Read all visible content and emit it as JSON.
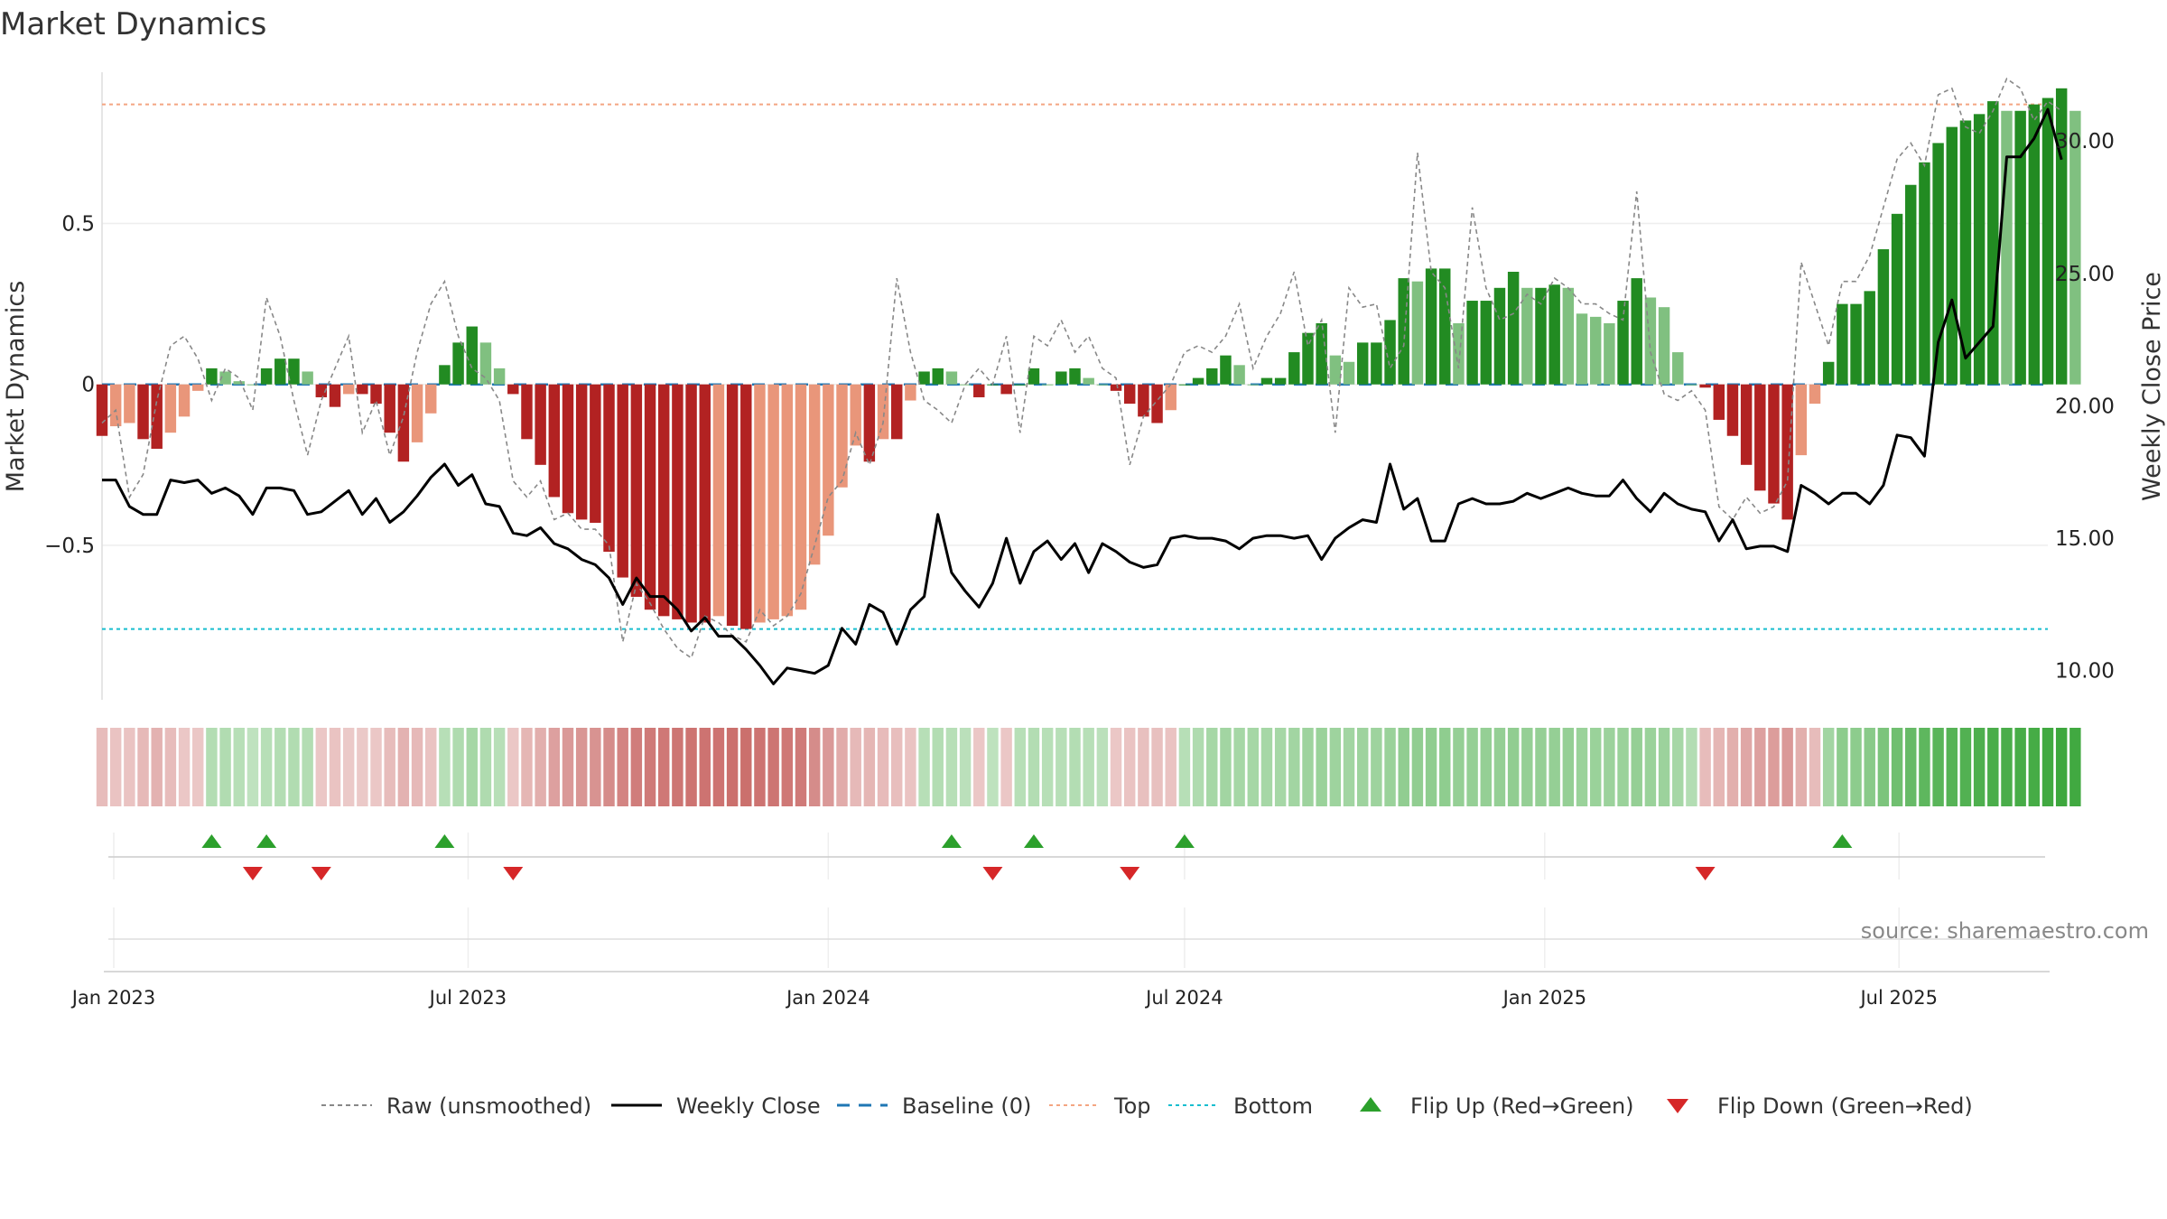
{
  "chart_data": {
    "type": "bar",
    "title": "Market Dynamics",
    "ylabel_left": "Market Dynamics",
    "ylabel_right": "Weekly Close Price",
    "left_ylim": [
      -0.98,
      0.97
    ],
    "right_ylim": [
      8.9,
      32.6
    ],
    "left_ticks": [
      0.5,
      0,
      -0.5
    ],
    "left_tick_labels": [
      "0.5",
      "0",
      "−0.5"
    ],
    "right_ticks": [
      30,
      25,
      20,
      15,
      10
    ],
    "right_tick_labels": [
      "30.00",
      "25.00",
      "20.00",
      "15.00",
      "10.00"
    ],
    "x_start": "2022-12-26",
    "x_end": "2025-09-15",
    "date_ticks": [
      {
        "date": "2023-01-01",
        "label": "Jan 2023"
      },
      {
        "date": "2023-07-01",
        "label": "Jul 2023"
      },
      {
        "date": "2024-01-01",
        "label": "Jan 2024"
      },
      {
        "date": "2024-07-01",
        "label": "Jul 2024"
      },
      {
        "date": "2025-01-01",
        "label": "Jan 2025"
      },
      {
        "date": "2025-07-01",
        "label": "Jul 2025"
      }
    ],
    "first_week": "2022-12-26",
    "top_line": 0.87,
    "bottom_line": -0.76,
    "baseline": 0,
    "smoothed": [
      -0.16,
      -0.13,
      -0.12,
      -0.17,
      -0.2,
      -0.15,
      -0.1,
      -0.02,
      0.05,
      0.04,
      0.01,
      0.0,
      0.05,
      0.08,
      0.08,
      0.04,
      -0.04,
      -0.07,
      -0.03,
      -0.03,
      -0.06,
      -0.15,
      -0.24,
      -0.18,
      -0.09,
      0.06,
      0.13,
      0.18,
      0.13,
      0.05,
      -0.03,
      -0.17,
      -0.25,
      -0.35,
      -0.4,
      -0.42,
      -0.43,
      -0.52,
      -0.6,
      -0.66,
      -0.7,
      -0.72,
      -0.73,
      -0.74,
      -0.74,
      -0.72,
      -0.75,
      -0.76,
      -0.74,
      -0.73,
      -0.72,
      -0.7,
      -0.56,
      -0.47,
      -0.32,
      -0.19,
      -0.24,
      -0.17,
      -0.17,
      -0.05,
      0.04,
      0.05,
      0.04,
      0.0,
      -0.04,
      0.0,
      -0.03,
      0.0,
      0.05,
      0.0,
      0.04,
      0.05,
      0.02,
      0.0,
      -0.02,
      -0.06,
      -0.1,
      -0.12,
      -0.08,
      0.0,
      0.02,
      0.05,
      0.09,
      0.06,
      0.0,
      0.02,
      0.02,
      0.1,
      0.16,
      0.19,
      0.09,
      0.07,
      0.13,
      0.13,
      0.2,
      0.33,
      0.32,
      0.36,
      0.36,
      0.19,
      0.26,
      0.26,
      0.3,
      0.35,
      0.3,
      0.3,
      0.31,
      0.3,
      0.22,
      0.21,
      0.19,
      0.26,
      0.33,
      0.27,
      0.24,
      0.1,
      0.0,
      -0.01,
      -0.11,
      -0.16,
      -0.25,
      -0.33,
      -0.37,
      -0.42,
      -0.22,
      -0.06,
      0.07,
      0.25,
      0.25,
      0.29,
      0.42,
      0.53,
      0.62,
      0.69,
      0.75,
      0.8,
      0.82,
      0.84,
      0.88,
      0.85,
      0.85,
      0.87,
      0.89,
      0.92,
      0.85
    ],
    "raw": [
      -0.12,
      -0.08,
      -0.35,
      -0.28,
      -0.05,
      0.12,
      0.15,
      0.08,
      -0.05,
      0.05,
      0.02,
      -0.08,
      0.27,
      0.15,
      -0.05,
      -0.22,
      -0.05,
      0.05,
      0.15,
      -0.15,
      -0.05,
      -0.22,
      -0.1,
      0.1,
      0.25,
      0.32,
      0.15,
      0.05,
      0.02,
      -0.05,
      -0.3,
      -0.35,
      -0.3,
      -0.42,
      -0.4,
      -0.45,
      -0.45,
      -0.5,
      -0.8,
      -0.62,
      -0.68,
      -0.76,
      -0.82,
      -0.85,
      -0.72,
      -0.74,
      -0.78,
      -0.8,
      -0.7,
      -0.75,
      -0.72,
      -0.65,
      -0.5,
      -0.35,
      -0.3,
      -0.15,
      -0.25,
      -0.12,
      0.33,
      0.1,
      -0.05,
      -0.08,
      -0.12,
      0.0,
      0.05,
      0.0,
      0.15,
      -0.15,
      0.15,
      0.12,
      0.2,
      0.1,
      0.15,
      0.05,
      0.02,
      -0.25,
      -0.1,
      -0.05,
      0.0,
      0.1,
      0.12,
      0.1,
      0.15,
      0.25,
      0.05,
      0.15,
      0.22,
      0.35,
      0.12,
      0.2,
      -0.15,
      0.3,
      0.24,
      0.25,
      0.05,
      0.12,
      0.72,
      0.35,
      0.3,
      0.05,
      0.55,
      0.3,
      0.2,
      0.22,
      0.28,
      0.25,
      0.33,
      0.3,
      0.25,
      0.25,
      0.22,
      0.2,
      0.6,
      0.1,
      -0.03,
      -0.05,
      -0.02,
      -0.08,
      -0.38,
      -0.42,
      -0.35,
      -0.4,
      -0.38,
      -0.3,
      0.38,
      0.25,
      0.12,
      0.32,
      0.32,
      0.4,
      0.55,
      0.7,
      0.75,
      0.68,
      0.9,
      0.92,
      0.8,
      0.78,
      0.85,
      0.95,
      0.92,
      0.82,
      0.88,
      0.85
    ],
    "weekly_close": [
      17.2,
      17.2,
      16.2,
      15.9,
      15.9,
      17.2,
      17.1,
      17.2,
      16.7,
      16.9,
      16.6,
      15.9,
      16.9,
      16.9,
      16.8,
      15.9,
      16.0,
      16.4,
      16.8,
      15.9,
      16.5,
      15.6,
      16.0,
      16.6,
      17.3,
      17.8,
      17.0,
      17.4,
      16.3,
      16.2,
      15.2,
      15.1,
      15.4,
      14.8,
      14.6,
      14.2,
      14.0,
      13.5,
      12.5,
      13.5,
      12.8,
      12.8,
      12.3,
      11.5,
      12.0,
      11.3,
      11.3,
      10.8,
      10.2,
      9.5,
      10.1,
      10.0,
      9.9,
      10.2,
      11.6,
      11.0,
      12.5,
      12.2,
      11.0,
      12.3,
      12.8,
      15.9,
      13.7,
      13.0,
      12.4,
      13.3,
      15.0,
      13.3,
      14.5,
      14.9,
      14.2,
      14.8,
      13.7,
      14.8,
      14.5,
      14.1,
      13.9,
      14.0,
      15.0,
      15.1,
      15.0,
      15.0,
      14.9,
      14.6,
      15.0,
      15.1,
      15.1,
      15.0,
      15.1,
      14.2,
      15.0,
      15.4,
      15.7,
      15.6,
      17.8,
      16.1,
      16.5,
      14.9,
      14.9,
      16.3,
      16.5,
      16.3,
      16.3,
      16.4,
      16.7,
      16.5,
      16.7,
      16.9,
      16.7,
      16.6,
      16.6,
      17.2,
      16.5,
      16.0,
      16.7,
      16.3,
      16.1,
      16.0,
      14.9,
      15.7,
      14.6,
      14.7,
      14.7,
      14.5,
      17.0,
      16.7,
      16.3,
      16.7,
      16.7,
      16.3,
      17.0,
      18.9,
      18.8,
      18.1,
      22.4,
      24.0,
      21.8,
      22.4,
      23.0,
      29.4,
      29.4,
      30.1,
      31.2,
      29.3
    ],
    "regime_intensity": [
      0.25,
      0.2,
      0.2,
      0.28,
      0.32,
      0.25,
      0.18,
      0.18,
      0.22,
      0.24,
      0.2,
      0.15,
      0.2,
      0.22,
      0.24,
      0.22,
      0.18,
      0.2,
      0.16,
      0.16,
      0.18,
      0.25,
      0.32,
      0.28,
      0.2,
      0.2,
      0.25,
      0.3,
      0.25,
      0.2,
      0.18,
      0.3,
      0.35,
      0.45,
      0.5,
      0.52,
      0.55,
      0.6,
      0.65,
      0.7,
      0.72,
      0.74,
      0.76,
      0.78,
      0.78,
      0.78,
      0.8,
      0.8,
      0.78,
      0.76,
      0.74,
      0.72,
      0.6,
      0.5,
      0.38,
      0.28,
      0.3,
      0.26,
      0.24,
      0.2,
      0.2,
      0.22,
      0.2,
      0.18,
      0.18,
      0.16,
      0.17,
      0.2,
      0.22,
      0.2,
      0.2,
      0.22,
      0.2,
      0.18,
      0.18,
      0.2,
      0.22,
      0.22,
      0.2,
      0.2,
      0.25,
      0.3,
      0.32,
      0.3,
      0.3,
      0.3,
      0.3,
      0.33,
      0.35,
      0.37,
      0.35,
      0.33,
      0.35,
      0.35,
      0.38,
      0.42,
      0.42,
      0.44,
      0.44,
      0.4,
      0.4,
      0.4,
      0.4,
      0.42,
      0.4,
      0.4,
      0.4,
      0.4,
      0.38,
      0.37,
      0.36,
      0.38,
      0.4,
      0.38,
      0.36,
      0.3,
      0.22,
      0.25,
      0.3,
      0.35,
      0.4,
      0.45,
      0.48,
      0.5,
      0.35,
      0.25,
      0.32,
      0.45,
      0.45,
      0.48,
      0.55,
      0.62,
      0.68,
      0.72,
      0.75,
      0.78,
      0.8,
      0.82,
      0.85,
      0.85,
      0.86,
      0.88,
      0.9,
      0.92,
      0.9
    ],
    "flip_up_weeks": [
      8,
      12,
      25,
      62,
      68,
      79,
      127
    ],
    "flip_down_weeks": [
      11,
      16,
      30,
      65,
      75,
      117
    ],
    "legend": [
      {
        "key": "raw",
        "label": "Raw (unsmoothed)"
      },
      {
        "key": "close",
        "label": "Weekly Close"
      },
      {
        "key": "baseline",
        "label": "Baseline (0)"
      },
      {
        "key": "top",
        "label": "Top"
      },
      {
        "key": "bottom",
        "label": "Bottom"
      },
      {
        "key": "flip_up",
        "label": "Flip Up (Red→Green)"
      },
      {
        "key": "flip_down",
        "label": "Flip Down (Green→Red)"
      }
    ],
    "legend_placement": "bottom-center",
    "source": "source: sharemaestro.com",
    "colors": {
      "green_dark": "#228B22",
      "green_light": "#80C080",
      "red_dark": "#B22222",
      "red_light": "#E9967A",
      "raw": "#888888",
      "close": "#000000",
      "baseline": "#1F77B4",
      "top": "#F4A582",
      "bottom": "#17BECF",
      "flip_up": "#2CA02C",
      "flip_down": "#D62728",
      "strip_green": "#2CA02C",
      "strip_red": "#C0504D"
    }
  }
}
